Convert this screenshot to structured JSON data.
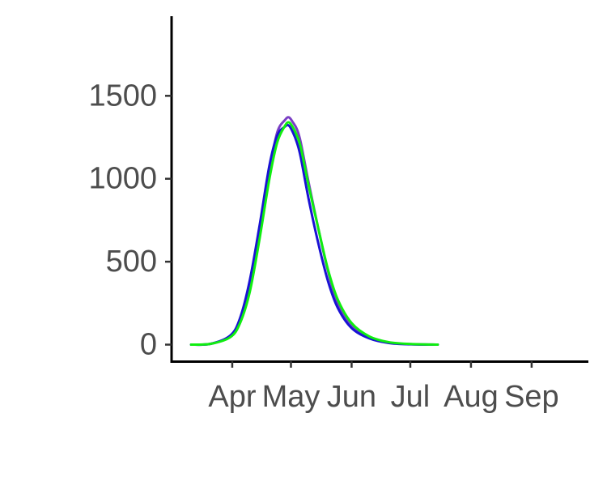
{
  "chart_data": {
    "type": "line",
    "title": "",
    "xlabel": "",
    "ylabel": "",
    "x_tick_labels": [
      "Apr",
      "May",
      "Jun",
      "Jul",
      "Aug",
      "Sep"
    ],
    "y_tick_labels": [
      "0",
      "500",
      "1000",
      "1500"
    ],
    "ylim": [
      -100,
      1980
    ],
    "xlim": [
      "2020-03-01",
      "2020-09-30"
    ],
    "x_ticks": [
      "2020-04-01",
      "2020-05-01",
      "2020-06-01",
      "2020-07-01",
      "2020-08-01",
      "2020-09-01"
    ],
    "y_ticks": [
      0,
      500,
      1000,
      1500
    ],
    "grid": false,
    "legend": "none",
    "series": [
      {
        "color": "#7a3fc4",
        "x": [
          "2020-03-11",
          "2020-03-21",
          "2020-03-31",
          "2020-04-05",
          "2020-04-10",
          "2020-04-15",
          "2020-04-20",
          "2020-04-24",
          "2020-04-28",
          "2020-04-30",
          "2020-05-02",
          "2020-05-04",
          "2020-05-06",
          "2020-05-10",
          "2020-05-15",
          "2020-05-20",
          "2020-05-25",
          "2020-06-01",
          "2020-06-10",
          "2020-06-20",
          "2020-07-01",
          "2020-07-15"
        ],
        "values": [
          0,
          5,
          50,
          150,
          360,
          680,
          1050,
          1280,
          1355,
          1370,
          1340,
          1300,
          1220,
          980,
          700,
          440,
          250,
          120,
          45,
          12,
          3,
          0
        ]
      },
      {
        "color": "#1a12d4",
        "x": [
          "2020-03-11",
          "2020-03-21",
          "2020-03-31",
          "2020-04-05",
          "2020-04-10",
          "2020-04-15",
          "2020-04-20",
          "2020-04-24",
          "2020-04-28",
          "2020-04-30",
          "2020-05-02",
          "2020-05-04",
          "2020-05-06",
          "2020-05-10",
          "2020-05-15",
          "2020-05-20",
          "2020-05-25",
          "2020-06-01",
          "2020-06-10",
          "2020-06-20",
          "2020-07-01",
          "2020-07-15"
        ],
        "values": [
          0,
          5,
          55,
          160,
          390,
          720,
          1080,
          1260,
          1315,
          1320,
          1280,
          1220,
          1130,
          880,
          610,
          380,
          220,
          100,
          38,
          10,
          2,
          0
        ]
      },
      {
        "color": "#10ee10",
        "x": [
          "2020-03-11",
          "2020-03-21",
          "2020-03-31",
          "2020-04-05",
          "2020-04-10",
          "2020-04-15",
          "2020-04-20",
          "2020-04-24",
          "2020-04-28",
          "2020-04-30",
          "2020-05-02",
          "2020-05-04",
          "2020-05-06",
          "2020-05-10",
          "2020-05-15",
          "2020-05-20",
          "2020-05-25",
          "2020-06-01",
          "2020-06-10",
          "2020-06-20",
          "2020-07-01",
          "2020-07-15"
        ],
        "values": [
          0,
          5,
          45,
          130,
          320,
          640,
          1000,
          1220,
          1320,
          1340,
          1310,
          1260,
          1190,
          960,
          700,
          450,
          270,
          130,
          50,
          15,
          4,
          0
        ]
      }
    ]
  }
}
